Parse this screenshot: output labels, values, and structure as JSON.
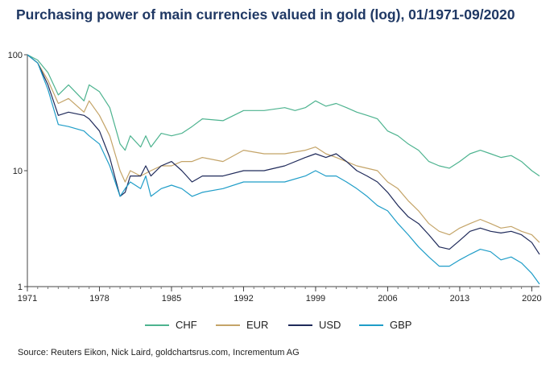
{
  "title": "Purchasing power of main currencies valued in gold (log), 01/1971-09/2020",
  "source": "Source: Reuters Eikon, Nick Laird, goldchartsrus.com, Incrementum AG",
  "chart_data": {
    "type": "line",
    "title": "Purchasing power of main currencies valued in gold (log), 01/1971-09/2020",
    "xlabel": "",
    "ylabel": "",
    "yscale": "log",
    "ylim": [
      1,
      100
    ],
    "xlim": [
      1971,
      2020.75
    ],
    "x_ticks": [
      "1971",
      "1978",
      "1985",
      "1992",
      "1999",
      "2006",
      "2013",
      "2020"
    ],
    "y_ticks": [
      "1",
      "10",
      "100"
    ],
    "grid": false,
    "legend_position": "bottom",
    "series": [
      {
        "name": "CHF",
        "color": "#4db38f",
        "points": [
          [
            1971.0,
            100
          ],
          [
            1972.0,
            90
          ],
          [
            1973.0,
            70
          ],
          [
            1974.0,
            45
          ],
          [
            1975.0,
            55
          ],
          [
            1976.5,
            40
          ],
          [
            1977.0,
            55
          ],
          [
            1978.0,
            48
          ],
          [
            1979.0,
            35
          ],
          [
            1980.0,
            17
          ],
          [
            1980.5,
            15
          ],
          [
            1981.0,
            20
          ],
          [
            1982.0,
            16
          ],
          [
            1982.5,
            20
          ],
          [
            1983.0,
            16
          ],
          [
            1984.0,
            21
          ],
          [
            1985.0,
            20
          ],
          [
            1986.0,
            21
          ],
          [
            1987.0,
            24
          ],
          [
            1988.0,
            28
          ],
          [
            1990.0,
            27
          ],
          [
            1992.0,
            33
          ],
          [
            1994.0,
            33
          ],
          [
            1996.0,
            35
          ],
          [
            1997.0,
            33
          ],
          [
            1998.0,
            35
          ],
          [
            1999.0,
            40
          ],
          [
            2000.0,
            36
          ],
          [
            2001.0,
            38
          ],
          [
            2002.0,
            35
          ],
          [
            2003.0,
            32
          ],
          [
            2004.0,
            30
          ],
          [
            2005.0,
            28
          ],
          [
            2006.0,
            22
          ],
          [
            2007.0,
            20
          ],
          [
            2008.0,
            17
          ],
          [
            2009.0,
            15
          ],
          [
            2010.0,
            12
          ],
          [
            2011.0,
            11
          ],
          [
            2012.0,
            10.5
          ],
          [
            2013.0,
            12
          ],
          [
            2014.0,
            14
          ],
          [
            2015.0,
            15
          ],
          [
            2016.0,
            14
          ],
          [
            2017.0,
            13
          ],
          [
            2018.0,
            13.5
          ],
          [
            2019.0,
            12
          ],
          [
            2020.0,
            10
          ],
          [
            2020.75,
            9
          ]
        ]
      },
      {
        "name": "EUR",
        "color": "#c4a468",
        "points": [
          [
            1971.0,
            100
          ],
          [
            1972.0,
            85
          ],
          [
            1973.0,
            60
          ],
          [
            1974.0,
            38
          ],
          [
            1975.0,
            42
          ],
          [
            1976.5,
            32
          ],
          [
            1977.0,
            40
          ],
          [
            1978.0,
            30
          ],
          [
            1979.0,
            20
          ],
          [
            1980.0,
            10
          ],
          [
            1980.5,
            8
          ],
          [
            1981.0,
            10
          ],
          [
            1982.0,
            9
          ],
          [
            1983.0,
            10
          ],
          [
            1984.0,
            11
          ],
          [
            1985.0,
            11
          ],
          [
            1986.0,
            12
          ],
          [
            1987.0,
            12
          ],
          [
            1988.0,
            13
          ],
          [
            1990.0,
            12
          ],
          [
            1992.0,
            15
          ],
          [
            1994.0,
            14
          ],
          [
            1996.0,
            14
          ],
          [
            1998.0,
            15
          ],
          [
            1999.0,
            16
          ],
          [
            2000.0,
            14
          ],
          [
            2001.0,
            13
          ],
          [
            2003.0,
            11
          ],
          [
            2005.0,
            10
          ],
          [
            2006.0,
            8
          ],
          [
            2007.0,
            7
          ],
          [
            2008.0,
            5.5
          ],
          [
            2009.0,
            4.5
          ],
          [
            2010.0,
            3.5
          ],
          [
            2011.0,
            3
          ],
          [
            2012.0,
            2.8
          ],
          [
            2013.0,
            3.2
          ],
          [
            2014.0,
            3.5
          ],
          [
            2015.0,
            3.8
          ],
          [
            2016.0,
            3.5
          ],
          [
            2017.0,
            3.2
          ],
          [
            2018.0,
            3.3
          ],
          [
            2019.0,
            3
          ],
          [
            2020.0,
            2.8
          ],
          [
            2020.75,
            2.4
          ]
        ]
      },
      {
        "name": "USD",
        "color": "#1f2a5a",
        "points": [
          [
            1971.0,
            100
          ],
          [
            1972.0,
            85
          ],
          [
            1973.0,
            55
          ],
          [
            1974.0,
            30
          ],
          [
            1975.0,
            32
          ],
          [
            1976.5,
            30
          ],
          [
            1977.0,
            28
          ],
          [
            1978.0,
            22
          ],
          [
            1979.0,
            13
          ],
          [
            1980.0,
            6
          ],
          [
            1980.5,
            6.5
          ],
          [
            1981.0,
            9
          ],
          [
            1982.0,
            9
          ],
          [
            1982.5,
            11
          ],
          [
            1983.0,
            9
          ],
          [
            1984.0,
            11
          ],
          [
            1985.0,
            12
          ],
          [
            1986.0,
            10
          ],
          [
            1987.0,
            8
          ],
          [
            1988.0,
            9
          ],
          [
            1990.0,
            9
          ],
          [
            1992.0,
            10
          ],
          [
            1994.0,
            10
          ],
          [
            1996.0,
            11
          ],
          [
            1998.0,
            13
          ],
          [
            1999.0,
            14
          ],
          [
            2000.0,
            13
          ],
          [
            2001.0,
            14
          ],
          [
            2002.0,
            12
          ],
          [
            2003.0,
            10
          ],
          [
            2004.0,
            9
          ],
          [
            2005.0,
            8
          ],
          [
            2006.0,
            6.5
          ],
          [
            2007.0,
            5
          ],
          [
            2008.0,
            4
          ],
          [
            2009.0,
            3.5
          ],
          [
            2010.0,
            2.8
          ],
          [
            2011.0,
            2.2
          ],
          [
            2012.0,
            2.1
          ],
          [
            2013.0,
            2.5
          ],
          [
            2014.0,
            3
          ],
          [
            2015.0,
            3.2
          ],
          [
            2016.0,
            3.0
          ],
          [
            2017.0,
            2.9
          ],
          [
            2018.0,
            3
          ],
          [
            2019.0,
            2.8
          ],
          [
            2020.0,
            2.4
          ],
          [
            2020.75,
            1.9
          ]
        ]
      },
      {
        "name": "GBP",
        "color": "#1f9dc8",
        "points": [
          [
            1971.0,
            100
          ],
          [
            1972.0,
            85
          ],
          [
            1973.0,
            50
          ],
          [
            1974.0,
            25
          ],
          [
            1975.0,
            24
          ],
          [
            1976.5,
            22
          ],
          [
            1977.0,
            20
          ],
          [
            1978.0,
            17
          ],
          [
            1979.0,
            11
          ],
          [
            1980.0,
            6
          ],
          [
            1980.5,
            7
          ],
          [
            1981.0,
            8
          ],
          [
            1982.0,
            7
          ],
          [
            1982.5,
            9
          ],
          [
            1983.0,
            6
          ],
          [
            1984.0,
            7
          ],
          [
            1985.0,
            7.5
          ],
          [
            1986.0,
            7
          ],
          [
            1987.0,
            6
          ],
          [
            1988.0,
            6.5
          ],
          [
            1990.0,
            7
          ],
          [
            1992.0,
            8
          ],
          [
            1994.0,
            8
          ],
          [
            1996.0,
            8
          ],
          [
            1998.0,
            9
          ],
          [
            1999.0,
            10
          ],
          [
            2000.0,
            9
          ],
          [
            2001.0,
            9
          ],
          [
            2002.0,
            8
          ],
          [
            2003.0,
            7
          ],
          [
            2004.0,
            6
          ],
          [
            2005.0,
            5
          ],
          [
            2006.0,
            4.5
          ],
          [
            2007.0,
            3.5
          ],
          [
            2008.0,
            2.8
          ],
          [
            2009.0,
            2.2
          ],
          [
            2010.0,
            1.8
          ],
          [
            2011.0,
            1.5
          ],
          [
            2012.0,
            1.5
          ],
          [
            2013.0,
            1.7
          ],
          [
            2014.0,
            1.9
          ],
          [
            2015.0,
            2.1
          ],
          [
            2016.0,
            2.0
          ],
          [
            2017.0,
            1.7
          ],
          [
            2018.0,
            1.8
          ],
          [
            2019.0,
            1.6
          ],
          [
            2020.0,
            1.3
          ],
          [
            2020.75,
            1.05
          ]
        ]
      }
    ]
  }
}
